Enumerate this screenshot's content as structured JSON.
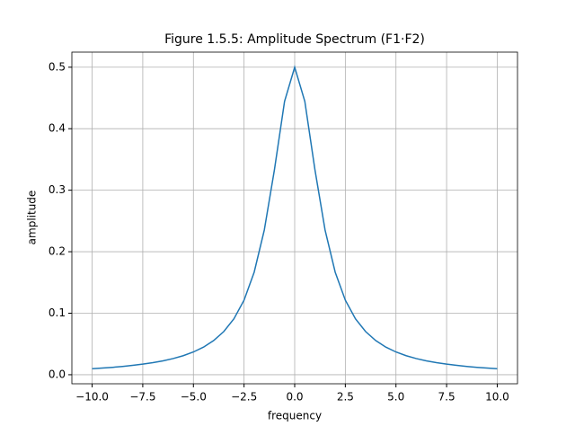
{
  "chart_data": {
    "type": "line",
    "title": "Figure 1.5.5: Amplitude Spectrum (F1·F2)",
    "x_label": "frequency",
    "y_label": "amplitude",
    "x": [
      -10,
      -9.5,
      -9,
      -8.5,
      -8,
      -7.5,
      -7,
      -6.5,
      -6,
      -5.5,
      -5,
      -4.5,
      -4,
      -3.5,
      -3,
      -2.5,
      -2,
      -1.5,
      -1,
      -0.5,
      0,
      0.5,
      1,
      1.5,
      2,
      2.5,
      3,
      3.5,
      4,
      4.5,
      5,
      5.5,
      6,
      6.5,
      7,
      7.5,
      8,
      8.5,
      9,
      9.5,
      10
    ],
    "series": [
      {
        "color": "#1f77b4",
        "values": [
          0.0098,
          0.0108,
          0.012,
          0.0135,
          0.0152,
          0.0172,
          0.0196,
          0.0226,
          0.0263,
          0.031,
          0.037,
          0.0449,
          0.0556,
          0.0702,
          0.0909,
          0.1212,
          0.1667,
          0.2353,
          0.3333,
          0.4444,
          0.5,
          0.4444,
          0.3333,
          0.2353,
          0.1667,
          0.1212,
          0.0909,
          0.0702,
          0.0556,
          0.0449,
          0.037,
          0.031,
          0.0263,
          0.0226,
          0.0196,
          0.0172,
          0.0152,
          0.0135,
          0.012,
          0.0108,
          0.0098
        ]
      }
    ],
    "xlim": [
      -11,
      11
    ],
    "ylim": [
      -0.0147,
      0.5245
    ],
    "xticks": [
      {
        "value": -10,
        "label": "−10.0"
      },
      {
        "value": -7.5,
        "label": "−7.5"
      },
      {
        "value": -5,
        "label": "−5.0"
      },
      {
        "value": -2.5,
        "label": "−2.5"
      },
      {
        "value": 0,
        "label": "0.0"
      },
      2.5,
      {
        "value": 5,
        "label": "5.0"
      },
      7.5,
      {
        "value": 10,
        "label": "10.0"
      }
    ],
    "yticks": [
      {
        "value": 0,
        "label": "0.0"
      },
      0.1,
      0.2,
      0.3,
      0.4,
      0.5
    ],
    "grid": true
  }
}
